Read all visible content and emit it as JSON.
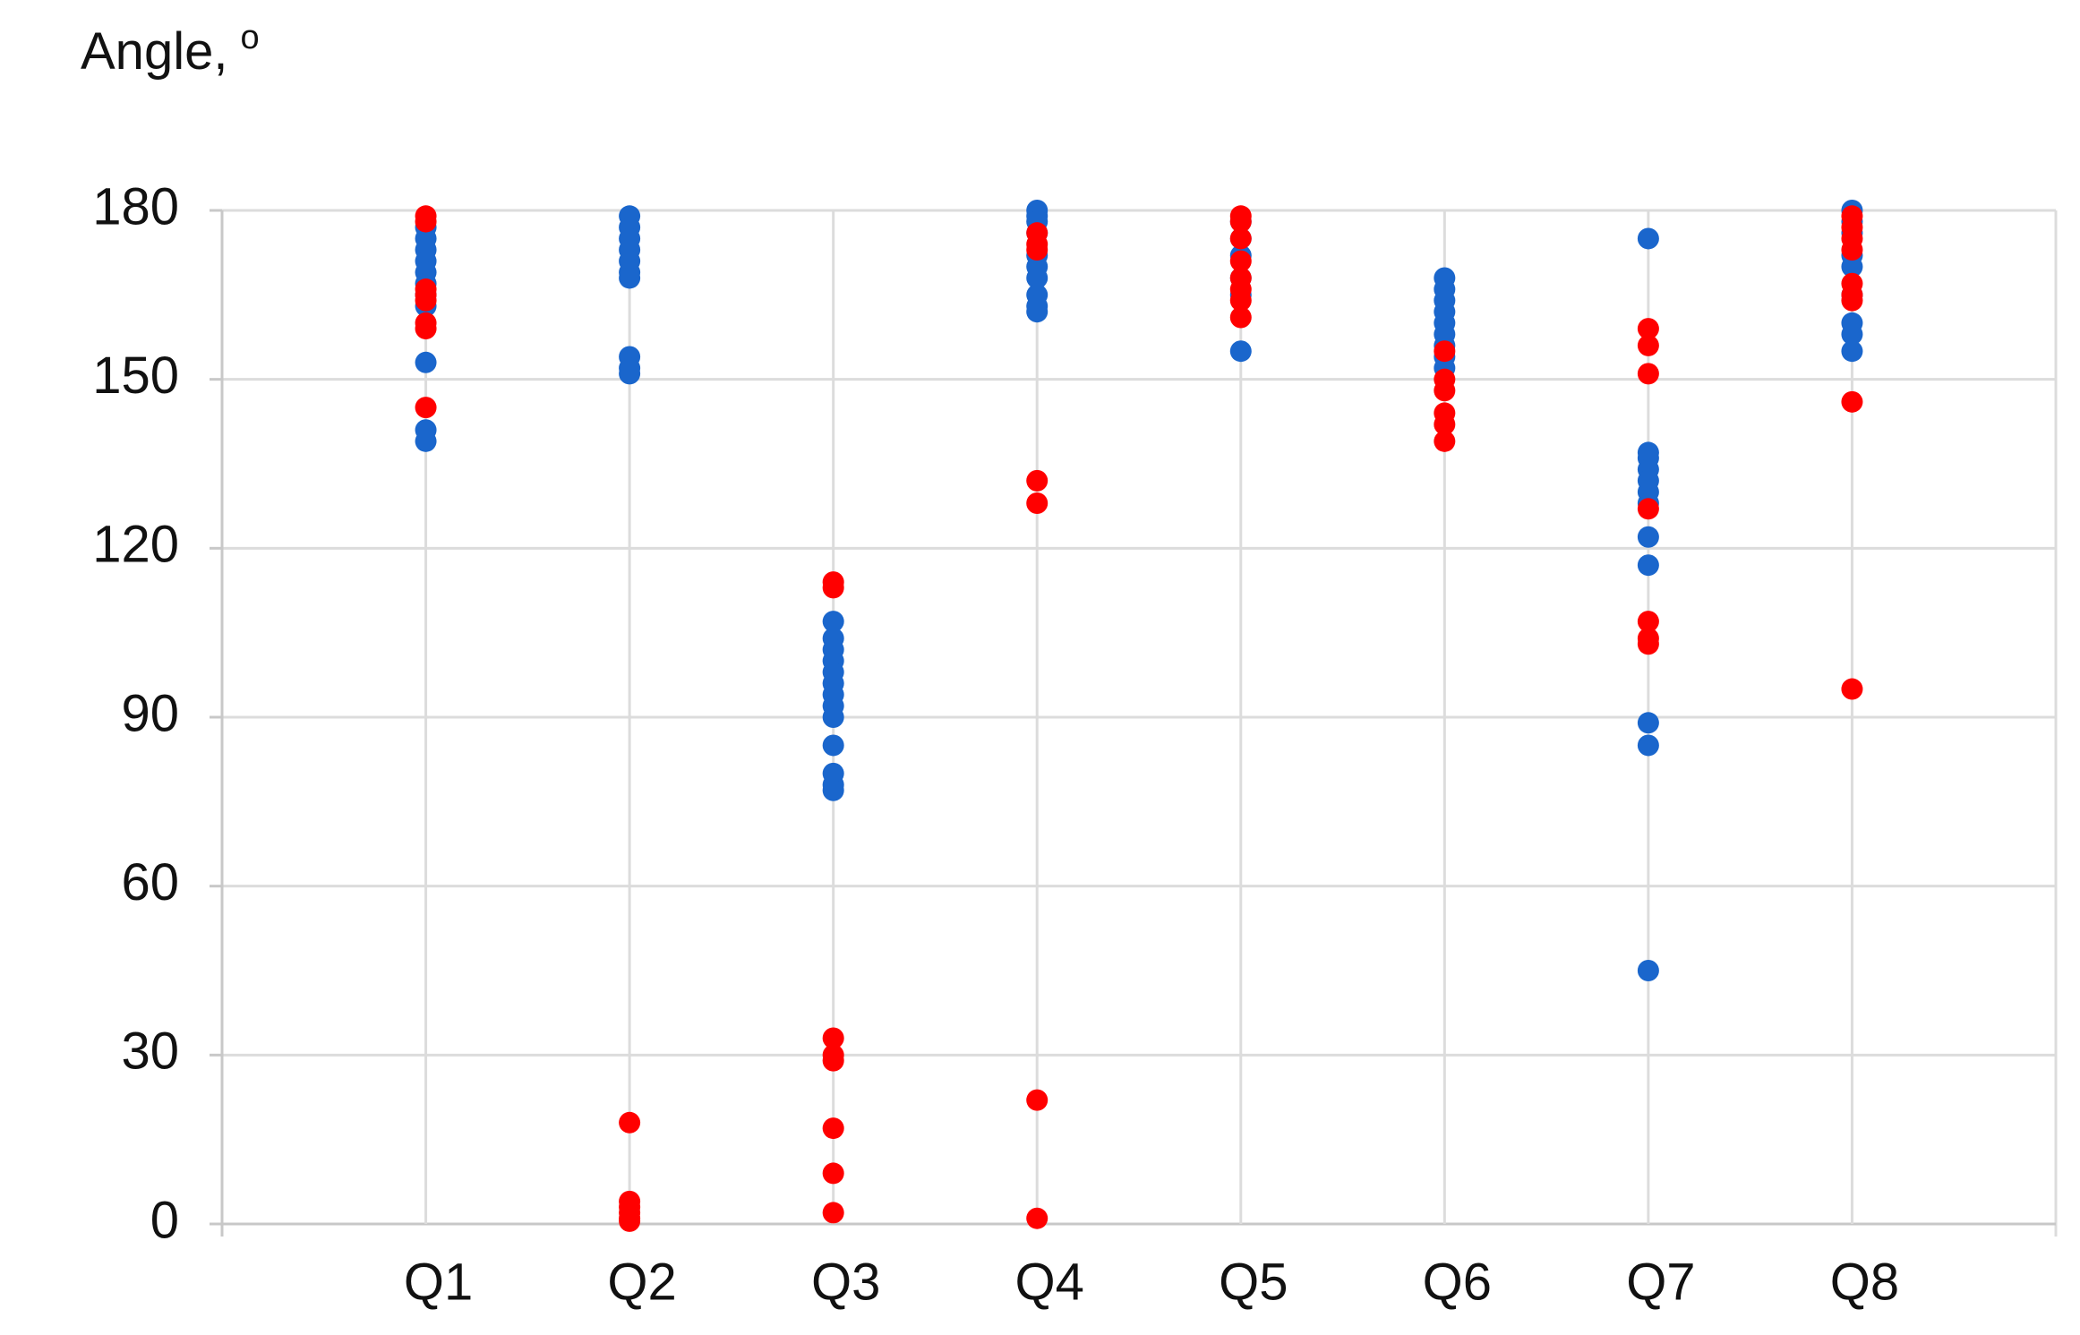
{
  "chart_data": {
    "type": "strip",
    "ylabel": {
      "text": "Angle,",
      "superscript": "o"
    },
    "categories": [
      "Q1",
      "Q2",
      "Q3",
      "Q4",
      "Q5",
      "Q6",
      "Q7",
      "Q8"
    ],
    "ylim": [
      0,
      180
    ],
    "yticks": [
      0,
      30,
      60,
      90,
      120,
      150,
      180
    ],
    "grid": true,
    "series": [
      {
        "color": "#1a66cc",
        "values": [
          [
            177,
            175,
            173,
            171,
            169,
            167,
            165,
            163,
            153,
            141,
            139
          ],
          [
            179,
            177,
            175,
            173,
            171,
            169,
            168,
            154,
            152,
            151
          ],
          [
            107,
            104,
            102,
            100,
            98,
            96,
            94,
            92,
            90,
            85,
            80,
            78,
            77
          ],
          [
            180,
            179,
            178,
            176,
            172,
            170,
            168,
            165,
            163,
            162
          ],
          [
            178,
            175,
            172,
            168,
            165,
            155
          ],
          [
            168,
            166,
            164,
            162,
            160,
            158,
            156,
            154,
            152
          ],
          [
            175,
            137,
            136,
            134,
            132,
            130,
            128,
            122,
            117,
            89,
            85,
            45
          ],
          [
            180,
            178,
            176,
            172,
            170,
            165,
            160,
            158,
            155
          ]
        ]
      },
      {
        "color": "#ff0000",
        "values": [
          [
            179,
            178,
            166,
            165,
            164,
            160,
            159,
            145
          ],
          [
            18,
            4,
            3,
            2,
            1,
            0.5
          ],
          [
            114,
            113,
            33,
            30,
            29,
            17,
            9,
            2
          ],
          [
            176,
            174,
            173,
            132,
            128,
            22,
            1
          ],
          [
            179,
            178,
            175,
            171,
            168,
            166,
            164,
            161
          ],
          [
            155,
            150,
            148,
            144,
            142,
            139
          ],
          [
            159,
            156,
            151,
            127,
            107,
            104,
            103
          ],
          [
            179,
            177,
            175,
            173,
            167,
            165,
            164,
            146,
            95
          ]
        ]
      }
    ]
  }
}
